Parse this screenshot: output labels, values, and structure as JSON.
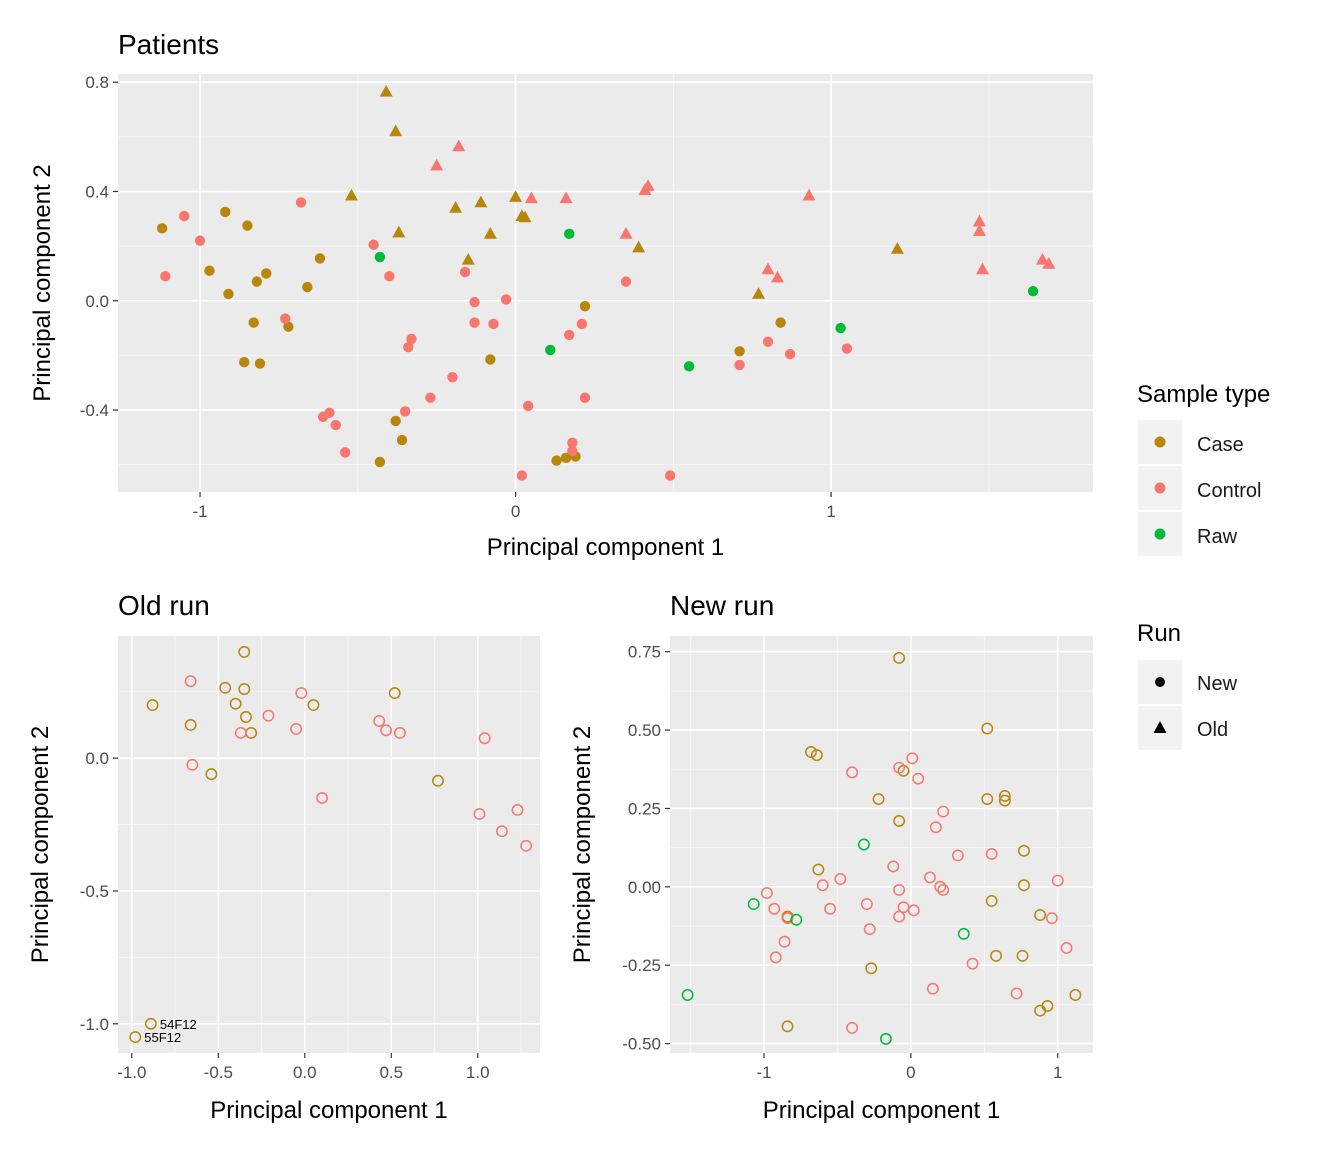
{
  "chart_data": [
    {
      "type": "scatter",
      "title": "Patients",
      "xlabel": "Principal component 1",
      "ylabel": "Principal component 2",
      "xlim": [
        -1.26,
        1.83
      ],
      "ylim": [
        -0.7,
        0.83
      ],
      "xticks": [
        -1,
        0,
        1
      ],
      "xtick_labels": [
        "-1",
        "0",
        "1"
      ],
      "yticks": [
        -0.4,
        0.0,
        0.4,
        0.8
      ],
      "ytick_labels": [
        "-0.4",
        "0.0",
        "0.4",
        "0.8"
      ],
      "grid": true,
      "marker_fill": "filled",
      "series": [
        {
          "name": "Case",
          "marker": "circle",
          "color": "#B8860B",
          "points": [
            [
              -1.12,
              0.265
            ],
            [
              -0.92,
              0.325
            ],
            [
              -0.85,
              0.275
            ],
            [
              -0.97,
              0.11
            ],
            [
              -0.91,
              0.025
            ],
            [
              -0.82,
              0.07
            ],
            [
              -0.79,
              0.1
            ],
            [
              -0.83,
              -0.08
            ],
            [
              -0.72,
              -0.095
            ],
            [
              -0.66,
              0.05
            ],
            [
              -0.62,
              0.155
            ],
            [
              -0.86,
              -0.225
            ],
            [
              -0.81,
              -0.23
            ],
            [
              -0.38,
              -0.44
            ],
            [
              -0.36,
              -0.51
            ],
            [
              -0.43,
              -0.59
            ],
            [
              -0.08,
              -0.215
            ],
            [
              0.13,
              -0.585
            ],
            [
              0.16,
              -0.575
            ],
            [
              0.19,
              -0.57
            ],
            [
              0.22,
              -0.02
            ],
            [
              0.71,
              -0.185
            ],
            [
              0.84,
              -0.08
            ]
          ]
        },
        {
          "name": "Control",
          "marker": "circle",
          "color": "#F8766D",
          "points": [
            [
              -1.11,
              0.09
            ],
            [
              -1.05,
              0.31
            ],
            [
              -1.0,
              0.22
            ],
            [
              -0.68,
              0.36
            ],
            [
              -0.73,
              -0.065
            ],
            [
              -0.61,
              -0.425
            ],
            [
              -0.59,
              -0.41
            ],
            [
              -0.57,
              -0.455
            ],
            [
              -0.54,
              -0.555
            ],
            [
              -0.45,
              0.205
            ],
            [
              -0.4,
              0.09
            ],
            [
              -0.35,
              -0.405
            ],
            [
              -0.34,
              -0.17
            ],
            [
              -0.33,
              -0.14
            ],
            [
              -0.27,
              -0.355
            ],
            [
              -0.2,
              -0.28
            ],
            [
              -0.16,
              0.105
            ],
            [
              -0.13,
              -0.005
            ],
            [
              -0.13,
              -0.08
            ],
            [
              -0.07,
              -0.085
            ],
            [
              -0.03,
              0.005
            ],
            [
              0.04,
              -0.385
            ],
            [
              0.02,
              -0.64
            ],
            [
              0.17,
              -0.125
            ],
            [
              0.18,
              -0.52
            ],
            [
              0.18,
              -0.55
            ],
            [
              0.21,
              -0.085
            ],
            [
              0.22,
              -0.355
            ],
            [
              0.35,
              0.07
            ],
            [
              0.49,
              -0.64
            ],
            [
              0.71,
              -0.235
            ],
            [
              0.8,
              -0.15
            ],
            [
              0.87,
              -0.195
            ],
            [
              1.05,
              -0.175
            ]
          ]
        },
        {
          "name": "Raw",
          "marker": "circle",
          "color": "#00BA38",
          "points": [
            [
              -0.43,
              0.16
            ],
            [
              0.11,
              -0.18
            ],
            [
              0.17,
              0.245
            ],
            [
              0.55,
              -0.24
            ],
            [
              1.03,
              -0.1
            ],
            [
              1.64,
              0.035
            ]
          ]
        },
        {
          "name": "Case",
          "marker": "triangle",
          "color": "#B8860B",
          "points": [
            [
              -0.41,
              0.765
            ],
            [
              -0.38,
              0.62
            ],
            [
              -0.52,
              0.385
            ],
            [
              -0.37,
              0.25
            ],
            [
              -0.19,
              0.34
            ],
            [
              -0.15,
              0.15
            ],
            [
              -0.11,
              0.36
            ],
            [
              -0.08,
              0.245
            ],
            [
              0.0,
              0.38
            ],
            [
              0.02,
              0.31
            ],
            [
              0.03,
              0.305
            ],
            [
              0.39,
              0.195
            ],
            [
              0.77,
              0.025
            ],
            [
              1.21,
              0.19
            ]
          ]
        },
        {
          "name": "Control",
          "marker": "triangle",
          "color": "#F8766D",
          "points": [
            [
              -0.25,
              0.495
            ],
            [
              -0.18,
              0.565
            ],
            [
              0.05,
              0.375
            ],
            [
              0.16,
              0.375
            ],
            [
              0.35,
              0.245
            ],
            [
              0.41,
              0.405
            ],
            [
              0.42,
              0.42
            ],
            [
              0.8,
              0.115
            ],
            [
              0.83,
              0.085
            ],
            [
              0.93,
              0.385
            ],
            [
              1.47,
              0.29
            ],
            [
              1.47,
              0.255
            ],
            [
              1.48,
              0.115
            ],
            [
              1.67,
              0.15
            ],
            [
              1.69,
              0.135
            ]
          ]
        }
      ]
    },
    {
      "type": "scatter",
      "title": "Old run",
      "xlabel": "Principal component 1",
      "ylabel": "Principal component 2",
      "xlim": [
        -1.08,
        1.36
      ],
      "ylim": [
        -1.11,
        0.46
      ],
      "xticks": [
        -1.0,
        -0.5,
        0.0,
        0.5,
        1.0
      ],
      "xtick_labels": [
        "-1.0",
        "-0.5",
        "0.0",
        "0.5",
        "1.0"
      ],
      "yticks": [
        -1.0,
        -0.5,
        0.0
      ],
      "ytick_labels": [
        "-1.0",
        "-0.5",
        "0.0"
      ],
      "grid": true,
      "marker_fill": "open",
      "annotations": [
        "54F12",
        "55F12"
      ],
      "series": [
        {
          "name": "Case",
          "marker": "circle",
          "color": "#B8860B",
          "points": [
            [
              -0.88,
              0.2
            ],
            [
              -0.66,
              0.125
            ],
            [
              -0.54,
              -0.06
            ],
            [
              -0.46,
              0.265
            ],
            [
              -0.4,
              0.205
            ],
            [
              -0.35,
              0.4
            ],
            [
              -0.35,
              0.26
            ],
            [
              -0.34,
              0.155
            ],
            [
              -0.31,
              0.095
            ],
            [
              0.05,
              0.2
            ],
            [
              0.52,
              0.245
            ],
            [
              0.77,
              -0.085
            ],
            [
              -0.89,
              -1.0
            ],
            [
              -0.98,
              -1.05
            ]
          ]
        },
        {
          "name": "Control",
          "marker": "circle",
          "color": "#F8766D",
          "points": [
            [
              -0.66,
              0.29
            ],
            [
              -0.65,
              -0.025
            ],
            [
              -0.37,
              0.095
            ],
            [
              -0.21,
              0.16
            ],
            [
              -0.05,
              0.11
            ],
            [
              -0.02,
              0.245
            ],
            [
              0.1,
              -0.15
            ],
            [
              0.43,
              0.14
            ],
            [
              0.47,
              0.105
            ],
            [
              0.55,
              0.095
            ],
            [
              1.01,
              -0.21
            ],
            [
              1.04,
              0.075
            ],
            [
              1.14,
              -0.275
            ],
            [
              1.23,
              -0.195
            ],
            [
              1.28,
              -0.33
            ]
          ]
        }
      ]
    },
    {
      "type": "scatter",
      "title": "New run",
      "xlabel": "Principal component 1",
      "ylabel": "Principal component 2",
      "xlim": [
        -1.64,
        1.24
      ],
      "ylim": [
        -0.53,
        0.8
      ],
      "xticks": [
        -1,
        0,
        1
      ],
      "xtick_labels": [
        "-1",
        "0",
        "1"
      ],
      "yticks": [
        -0.5,
        -0.25,
        0.0,
        0.25,
        0.5,
        0.75
      ],
      "ytick_labels": [
        "-0.50",
        "-0.25",
        "0.00",
        "0.25",
        "0.50",
        "0.75"
      ],
      "grid": true,
      "marker_fill": "open",
      "series": [
        {
          "name": "Case",
          "marker": "circle",
          "color": "#B8860B",
          "points": [
            [
              -0.08,
              0.73
            ],
            [
              -0.68,
              0.43
            ],
            [
              -0.64,
              0.42
            ],
            [
              -0.22,
              0.28
            ],
            [
              -0.08,
              0.21
            ],
            [
              -0.63,
              0.055
            ],
            [
              -0.05,
              0.37
            ],
            [
              0.52,
              0.505
            ],
            [
              0.52,
              0.28
            ],
            [
              0.64,
              0.29
            ],
            [
              0.64,
              0.275
            ],
            [
              0.77,
              0.115
            ],
            [
              0.77,
              0.005
            ],
            [
              0.55,
              -0.045
            ],
            [
              0.88,
              -0.09
            ],
            [
              0.58,
              -0.22
            ],
            [
              0.76,
              -0.22
            ],
            [
              -0.27,
              -0.26
            ],
            [
              -0.84,
              -0.445
            ],
            [
              0.93,
              -0.38
            ],
            [
              0.88,
              -0.395
            ],
            [
              1.12,
              -0.345
            ],
            [
              -0.84,
              -0.095
            ]
          ]
        },
        {
          "name": "Control",
          "marker": "circle",
          "color": "#F8766D",
          "points": [
            [
              -0.4,
              0.365
            ],
            [
              -0.08,
              0.38
            ],
            [
              0.01,
              0.41
            ],
            [
              0.05,
              0.345
            ],
            [
              0.22,
              0.24
            ],
            [
              0.17,
              0.19
            ],
            [
              0.32,
              0.1
            ],
            [
              0.55,
              0.105
            ],
            [
              -0.12,
              0.065
            ],
            [
              -0.48,
              0.025
            ],
            [
              -0.6,
              0.005
            ],
            [
              -0.98,
              -0.02
            ],
            [
              -0.93,
              -0.07
            ],
            [
              -0.84,
              -0.1
            ],
            [
              -0.55,
              -0.07
            ],
            [
              -0.3,
              -0.055
            ],
            [
              -0.08,
              -0.01
            ],
            [
              0.13,
              0.03
            ],
            [
              0.2,
              0.0
            ],
            [
              0.22,
              -0.01
            ],
            [
              -0.05,
              -0.065
            ],
            [
              0.02,
              -0.075
            ],
            [
              -0.08,
              -0.095
            ],
            [
              -0.28,
              -0.135
            ],
            [
              -0.86,
              -0.175
            ],
            [
              -0.92,
              -0.225
            ],
            [
              0.15,
              -0.325
            ],
            [
              0.42,
              -0.245
            ],
            [
              0.72,
              -0.34
            ],
            [
              -0.4,
              -0.45
            ],
            [
              1.0,
              0.02
            ],
            [
              0.96,
              -0.1
            ],
            [
              1.06,
              -0.195
            ]
          ]
        },
        {
          "name": "Raw",
          "marker": "circle",
          "color": "#00BA38",
          "points": [
            [
              -0.32,
              0.135
            ],
            [
              -1.07,
              -0.055
            ],
            [
              -0.78,
              -0.105
            ],
            [
              0.36,
              -0.15
            ],
            [
              -1.52,
              -0.345
            ],
            [
              -0.17,
              -0.485
            ]
          ]
        }
      ]
    }
  ],
  "legend": {
    "sample_type": {
      "title": "Sample type",
      "items": [
        {
          "label": "Case",
          "color": "#B8860B"
        },
        {
          "label": "Control",
          "color": "#F8766D"
        },
        {
          "label": "Raw",
          "color": "#00BA38"
        }
      ]
    },
    "run": {
      "title": "Run",
      "items": [
        {
          "label": "New",
          "marker": "circle"
        },
        {
          "label": "Old",
          "marker": "triangle"
        }
      ]
    }
  },
  "colors": {
    "panel_bg": "#EBEBEB",
    "grid_major": "#FFFFFF",
    "axis_text": "#4D4D4D"
  }
}
